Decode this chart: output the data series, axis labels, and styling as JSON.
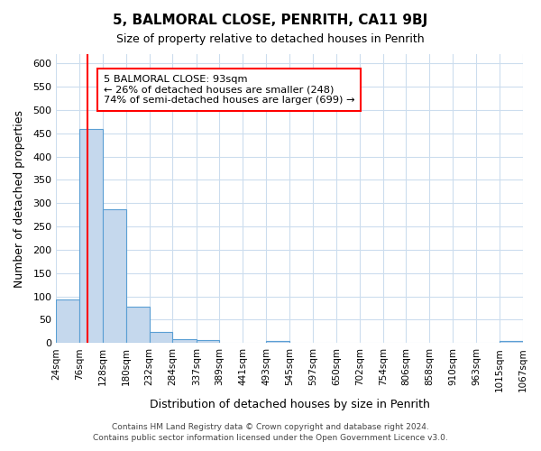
{
  "title_line1": "5, BALMORAL CLOSE, PENRITH, CA11 9BJ",
  "title_line2": "Size of property relative to detached houses in Penrith",
  "xlabel": "Distribution of detached houses by size in Penrith",
  "ylabel": "Number of detached properties",
  "bin_edges": [
    24,
    76,
    128,
    180,
    232,
    284,
    337,
    389,
    441,
    493,
    545,
    597,
    650,
    702,
    754,
    806,
    858,
    910,
    963,
    1015,
    1067
  ],
  "bar_heights": [
    93,
    460,
    287,
    78,
    24,
    8,
    6,
    0,
    0,
    5,
    0,
    0,
    0,
    0,
    0,
    0,
    0,
    0,
    0,
    5
  ],
  "bar_color": "#c5d8ed",
  "bar_edge_color": "#5a9fd4",
  "red_line_x": 93,
  "ylim": [
    0,
    620
  ],
  "yticks": [
    0,
    50,
    100,
    150,
    200,
    250,
    300,
    350,
    400,
    450,
    500,
    550,
    600
  ],
  "annotation_box_text": "5 BALMORAL CLOSE: 93sqm\n← 26% of detached houses are smaller (248)\n74% of semi-detached houses are larger (699) →",
  "footer_line1": "Contains HM Land Registry data © Crown copyright and database right 2024.",
  "footer_line2": "Contains public sector information licensed under the Open Government Licence v3.0.",
  "bg_color": "#ffffff",
  "grid_color": "#ccddee",
  "tick_labels": [
    "24sqm",
    "76sqm",
    "128sqm",
    "180sqm",
    "232sqm",
    "284sqm",
    "337sqm",
    "389sqm",
    "441sqm",
    "493sqm",
    "545sqm",
    "597sqm",
    "650sqm",
    "702sqm",
    "754sqm",
    "806sqm",
    "858sqm",
    "910sqm",
    "963sqm",
    "1015sqm",
    "1067sqm"
  ]
}
